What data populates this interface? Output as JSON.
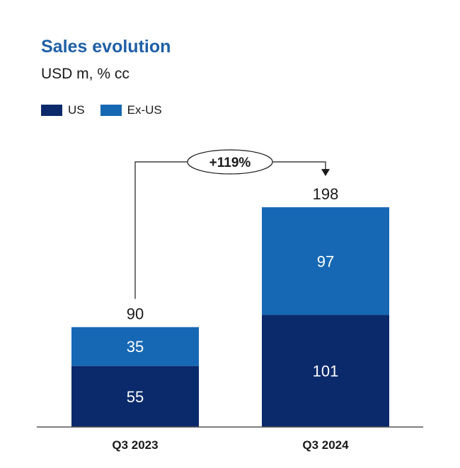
{
  "colors": {
    "US": "#0b2a6b",
    "Ex-US": "#1668b4"
  },
  "chart_data": {
    "type": "bar",
    "stacked": true,
    "title": "Sales evolution",
    "subtitle": "USD m, % cc",
    "categories": [
      "Q3 2023",
      "Q3 2024"
    ],
    "series": [
      {
        "name": "US",
        "values": [
          55,
          101
        ]
      },
      {
        "name": "Ex-US",
        "values": [
          35,
          97
        ]
      }
    ],
    "totals": [
      90,
      198
    ],
    "annotation": "+119%",
    "legend_position": "top-left",
    "grid": false
  }
}
